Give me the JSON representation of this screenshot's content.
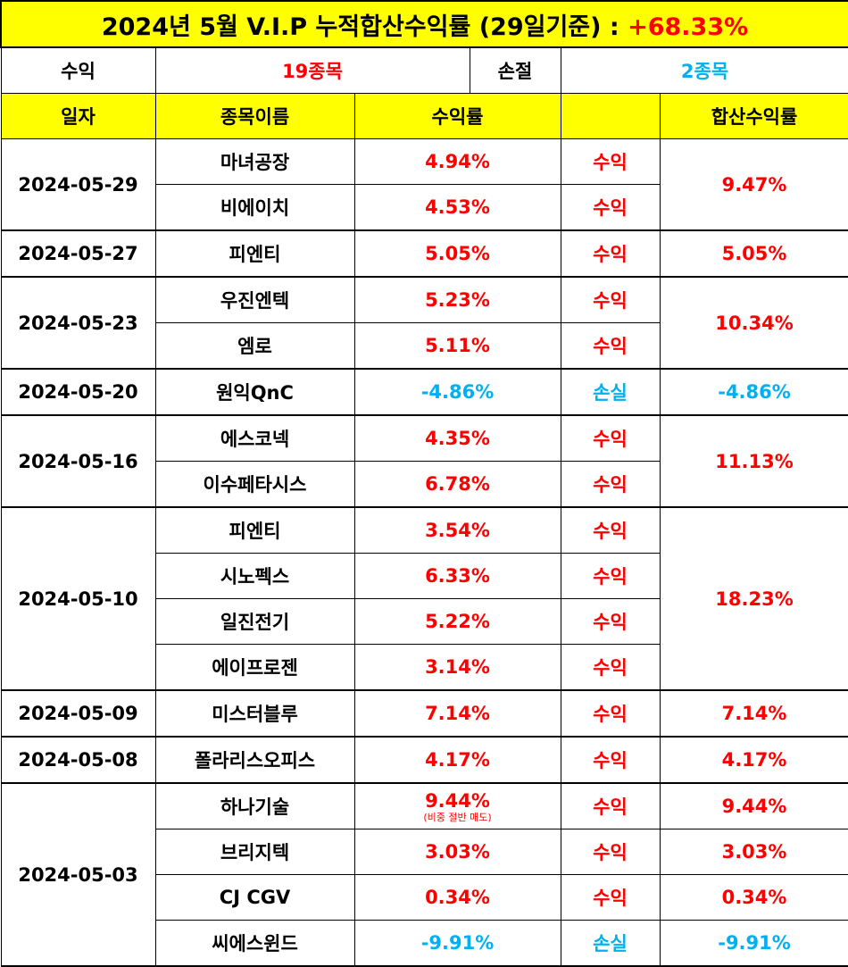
{
  "title": {
    "main": "2024년 5월 V.I.P 누적합산수익률 (29일기준) : ",
    "highlight": "+68.33%"
  },
  "summary": {
    "profit_label": "수익",
    "profit_value": "19종목",
    "loss_label": "손절",
    "loss_value": "2종목"
  },
  "headers": {
    "date": "일자",
    "name": "종목이름",
    "rate": "수익률",
    "result": "",
    "total": "합산수익률"
  },
  "groups": [
    {
      "date": "2024-05-29",
      "total": "9.47%",
      "rows": [
        {
          "name": "마녀공장",
          "rate": "4.94%",
          "result": "수익"
        },
        {
          "name": "비에이치",
          "rate": "4.53%",
          "result": "수익"
        }
      ]
    },
    {
      "date": "2024-05-27",
      "total": "5.05%",
      "rows": [
        {
          "name": "피엔티",
          "rate": "5.05%",
          "result": "수익"
        }
      ]
    },
    {
      "date": "2024-05-23",
      "total": "10.34%",
      "rows": [
        {
          "name": "우진엔텍",
          "rate": "5.23%",
          "result": "수익"
        },
        {
          "name": "엠로",
          "rate": "5.11%",
          "result": "수익"
        }
      ]
    },
    {
      "date": "2024-05-20",
      "total": "-4.86%",
      "rows": [
        {
          "name": "원익QnC",
          "rate": "-4.86%",
          "result": "손실"
        }
      ]
    },
    {
      "date": "2024-05-16",
      "total": "11.13%",
      "rows": [
        {
          "name": "에스코넥",
          "rate": "4.35%",
          "result": "수익"
        },
        {
          "name": "이수페타시스",
          "rate": "6.78%",
          "result": "수익"
        }
      ]
    },
    {
      "date": "2024-05-10",
      "total": "18.23%",
      "rows": [
        {
          "name": "피엔티",
          "rate": "3.54%",
          "result": "수익"
        },
        {
          "name": "시노펙스",
          "rate": "6.33%",
          "result": "수익"
        },
        {
          "name": "일진전기",
          "rate": "5.22%",
          "result": "수익"
        },
        {
          "name": "에이프로젠",
          "rate": "3.14%",
          "result": "수익"
        }
      ]
    },
    {
      "date": "2024-05-09",
      "total": "7.14%",
      "rows": [
        {
          "name": "미스터블루",
          "rate": "7.14%",
          "result": "수익"
        }
      ]
    },
    {
      "date": "2024-05-08",
      "total": "4.17%",
      "rows": [
        {
          "name": "폴라리스오피스",
          "rate": "4.17%",
          "result": "수익"
        }
      ]
    },
    {
      "date": "2024-05-03",
      "rows": [
        {
          "name": "하나기술",
          "rate": "9.44%",
          "note": "(비중 절반 매도)",
          "result": "수익",
          "total": "9.44%"
        },
        {
          "name": "브리지텍",
          "rate": "3.03%",
          "result": "수익",
          "total": "3.03%"
        },
        {
          "name": "CJ CGV",
          "rate": "0.34%",
          "result": "수익",
          "total": "0.34%"
        },
        {
          "name": "씨에스윈드",
          "rate": "-9.91%",
          "result": "손실",
          "total": "-9.91%"
        }
      ]
    }
  ],
  "colors": {
    "header_bg": "#ffff00",
    "profit": "#ff0000",
    "loss": "#00b0f0"
  }
}
